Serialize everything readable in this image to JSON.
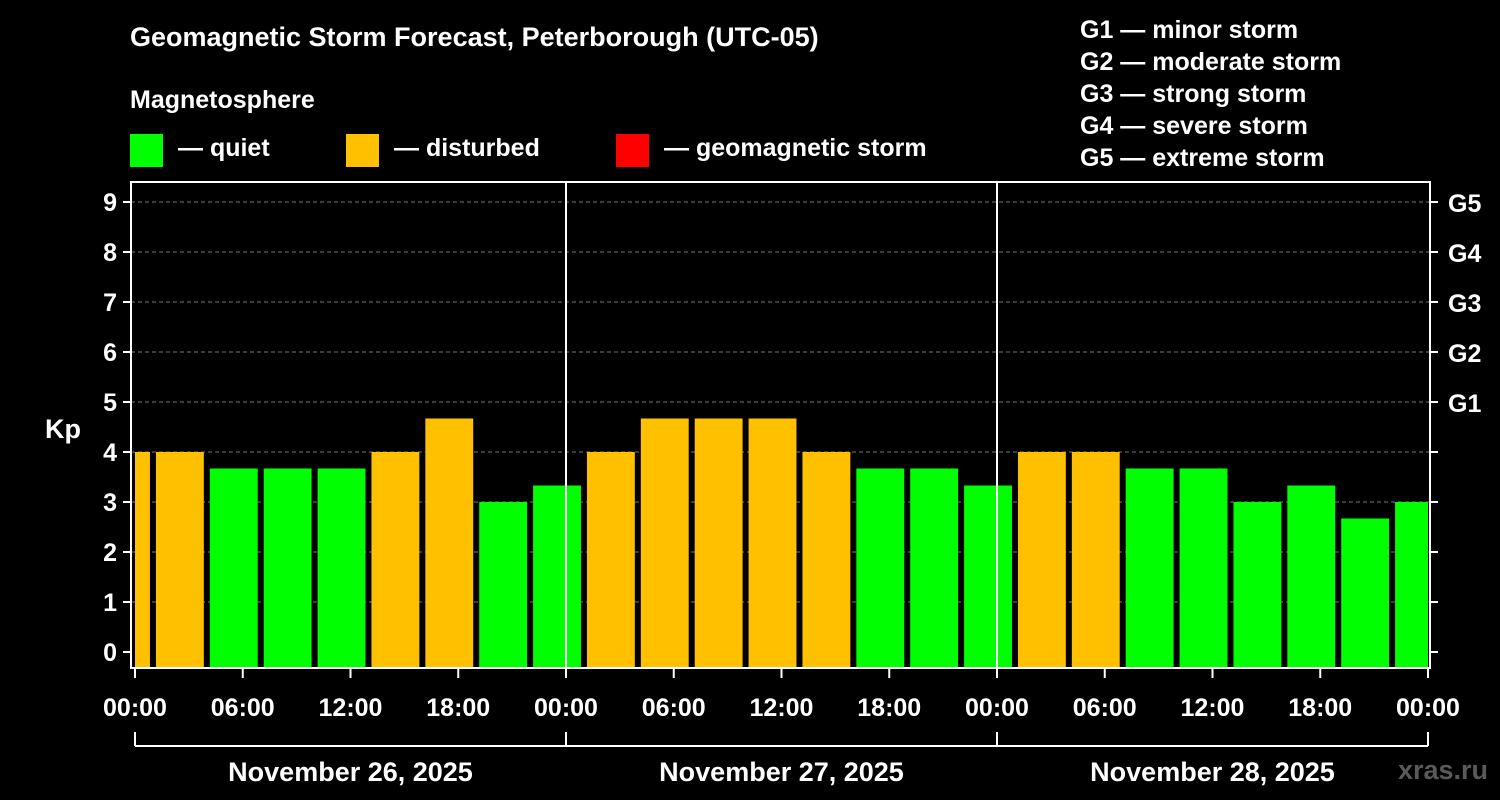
{
  "title": "Geomagnetic Storm Forecast, Peterborough (UTC-05)",
  "legend": {
    "heading": "Magnetosphere",
    "items": [
      {
        "label": "— quiet",
        "color": "#00ff00"
      },
      {
        "label": "— disturbed",
        "color": "#ffc000"
      },
      {
        "label": "— geomagnetic storm",
        "color": "#ff0000"
      }
    ]
  },
  "storm_scale": [
    "G1 — minor storm",
    "G2 — moderate storm",
    "G3 — strong storm",
    "G4 — severe storm",
    "G5 — extreme storm"
  ],
  "watermark": "xras.ru",
  "colors": {
    "quiet": "#00ff00",
    "disturbed": "#ffc000",
    "storm": "#ff0000"
  },
  "chart_data": {
    "type": "bar",
    "ylabel": "Kp",
    "ylim": [
      0,
      9
    ],
    "yticks": [
      0,
      1,
      2,
      3,
      4,
      5,
      6,
      7,
      8,
      9
    ],
    "right_ticks": [
      {
        "y": 5,
        "label": "G1"
      },
      {
        "y": 6,
        "label": "G2"
      },
      {
        "y": 7,
        "label": "G3"
      },
      {
        "y": 8,
        "label": "G4"
      },
      {
        "y": 9,
        "label": "G5"
      }
    ],
    "xlim_hours": [
      0,
      72
    ],
    "xtick_labels": [
      "00:00",
      "06:00",
      "12:00",
      "18:00",
      "00:00",
      "06:00",
      "12:00",
      "18:00",
      "00:00",
      "06:00",
      "12:00",
      "18:00",
      "00:00"
    ],
    "dates": [
      "November 26, 2025",
      "November 27, 2025",
      "November 28, 2025"
    ],
    "bars": [
      {
        "start": 0,
        "end": 1,
        "kp": 4.0,
        "status": "disturbed"
      },
      {
        "start": 1,
        "end": 4,
        "kp": 4.0,
        "status": "disturbed"
      },
      {
        "start": 4,
        "end": 7,
        "kp": 3.67,
        "status": "quiet"
      },
      {
        "start": 7,
        "end": 10,
        "kp": 3.67,
        "status": "quiet"
      },
      {
        "start": 10,
        "end": 13,
        "kp": 3.67,
        "status": "quiet"
      },
      {
        "start": 13,
        "end": 16,
        "kp": 4.0,
        "status": "disturbed"
      },
      {
        "start": 16,
        "end": 19,
        "kp": 4.67,
        "status": "disturbed"
      },
      {
        "start": 19,
        "end": 22,
        "kp": 3.0,
        "status": "quiet"
      },
      {
        "start": 22,
        "end": 25,
        "kp": 3.33,
        "status": "quiet"
      },
      {
        "start": 25,
        "end": 28,
        "kp": 4.0,
        "status": "disturbed"
      },
      {
        "start": 28,
        "end": 31,
        "kp": 4.67,
        "status": "disturbed"
      },
      {
        "start": 31,
        "end": 34,
        "kp": 4.67,
        "status": "disturbed"
      },
      {
        "start": 34,
        "end": 37,
        "kp": 4.67,
        "status": "disturbed"
      },
      {
        "start": 37,
        "end": 40,
        "kp": 4.0,
        "status": "disturbed"
      },
      {
        "start": 40,
        "end": 43,
        "kp": 3.67,
        "status": "quiet"
      },
      {
        "start": 43,
        "end": 46,
        "kp": 3.67,
        "status": "quiet"
      },
      {
        "start": 46,
        "end": 49,
        "kp": 3.33,
        "status": "quiet"
      },
      {
        "start": 49,
        "end": 52,
        "kp": 4.0,
        "status": "disturbed"
      },
      {
        "start": 52,
        "end": 55,
        "kp": 4.0,
        "status": "disturbed"
      },
      {
        "start": 55,
        "end": 58,
        "kp": 3.67,
        "status": "quiet"
      },
      {
        "start": 58,
        "end": 61,
        "kp": 3.67,
        "status": "quiet"
      },
      {
        "start": 61,
        "end": 64,
        "kp": 3.0,
        "status": "quiet"
      },
      {
        "start": 64,
        "end": 67,
        "kp": 3.33,
        "status": "quiet"
      },
      {
        "start": 67,
        "end": 70,
        "kp": 2.67,
        "status": "quiet"
      },
      {
        "start": 70,
        "end": 72,
        "kp": 3.0,
        "status": "quiet"
      }
    ]
  }
}
